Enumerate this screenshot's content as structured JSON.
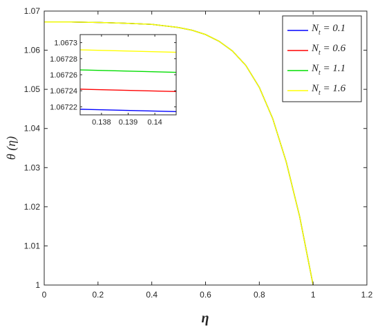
{
  "chart_data": {
    "type": "line",
    "xlabel": "η",
    "ylabel": "θ (η)",
    "xlim": [
      0,
      1.2
    ],
    "ylim": [
      1,
      1.07
    ],
    "x_ticks": [
      "0",
      "0.2",
      "0.4",
      "0.6",
      "0.8",
      "1",
      "1.2"
    ],
    "y_ticks": [
      "1",
      "1.01",
      "1.02",
      "1.03",
      "1.04",
      "1.05",
      "1.06",
      "1.07"
    ],
    "grid": false,
    "legend_position": "top-right",
    "curve": {
      "x": [
        0,
        0.1,
        0.2,
        0.3,
        0.4,
        0.5,
        0.55,
        0.6,
        0.65,
        0.7,
        0.75,
        0.8,
        0.85,
        0.9,
        0.95,
        1.0
      ],
      "y": [
        1.0672,
        1.0672,
        1.0671,
        1.0669,
        1.0666,
        1.0658,
        1.0651,
        1.064,
        1.0623,
        1.0598,
        1.0561,
        1.0505,
        1.0425,
        1.0315,
        1.0175,
        1.0
      ]
    },
    "series": [
      {
        "name": "N_t = 0.1",
        "label_main": "N",
        "label_sub": "t",
        "label_rest": " = 0.1",
        "color": "#0000ff",
        "inset_y": [
          1.067217,
          1.067214
        ]
      },
      {
        "name": "N_t = 0.6",
        "label_main": "N",
        "label_sub": "t",
        "label_rest": " = 0.6",
        "color": "#ff0000",
        "inset_y": [
          1.067242,
          1.067239
        ]
      },
      {
        "name": "N_t = 1.1",
        "label_main": "N",
        "label_sub": "t",
        "label_rest": " = 1.1",
        "color": "#00dd00",
        "inset_y": [
          1.067266,
          1.067263
        ]
      },
      {
        "name": "N_t = 1.6",
        "label_main": "N",
        "label_sub": "t",
        "label_rest": " = 1.6",
        "color": "#ffff00",
        "inset_y": [
          1.067291,
          1.067288
        ]
      }
    ],
    "inset": {
      "xlim": [
        0.1372,
        0.1408
      ],
      "ylim": [
        1.06721,
        1.06731
      ],
      "x": [
        0.1372,
        0.1408
      ],
      "x_ticks": [
        "0.138",
        "0.139",
        "0.14"
      ],
      "x_tick_values": [
        0.138,
        0.139,
        0.14
      ],
      "y_ticks": [
        "1.06722",
        "1.06724",
        "1.06726",
        "1.06728",
        "1.0673"
      ],
      "y_tick_values": [
        1.06722,
        1.06724,
        1.06726,
        1.06728,
        1.0673
      ]
    }
  }
}
